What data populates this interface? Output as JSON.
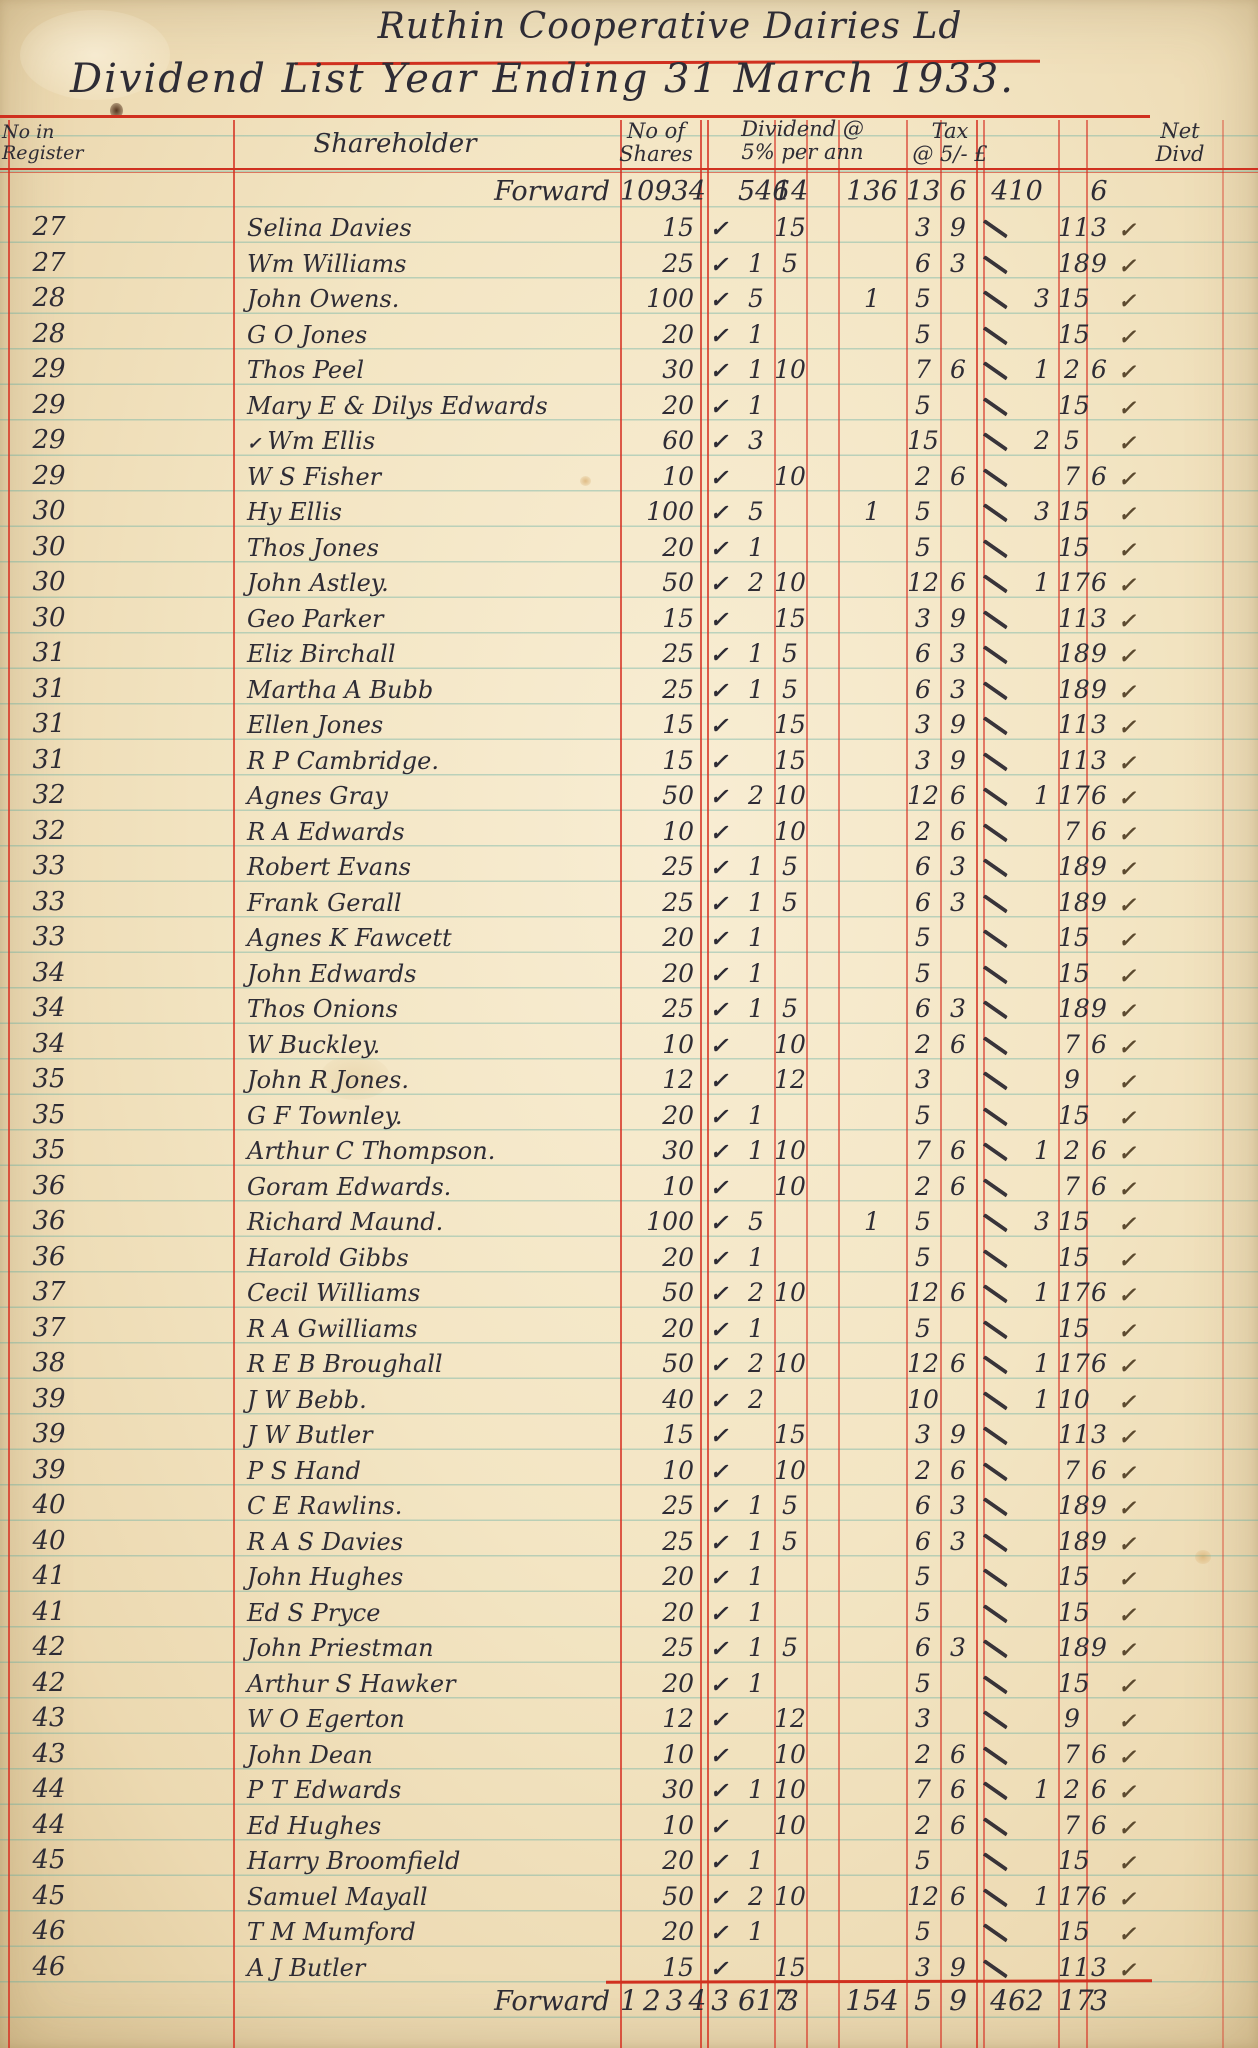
{
  "title": {
    "line1": "Ruthin Cooperative Dairies Ld",
    "line2": "Dividend List Year Ending 31 March 1933."
  },
  "columns": {
    "register": "No in\nRegister",
    "shareholder": "Shareholder",
    "shares": "No of\nShares",
    "dividend": "Dividend @\n5% per ann",
    "tax": "Tax\n@ 5/- £",
    "net": "Net\nDivd"
  },
  "marks": {
    "check": "✓",
    "tick": "✓",
    "pre_tick": "✓"
  },
  "colors": {
    "rule_red": "#d63426",
    "rule_teal": "#5aaaa0",
    "ink": "#2e2c35",
    "paper": "#f3e5c3"
  },
  "forward": {
    "label": "Forward",
    "shares": "10934",
    "div": [
      "546",
      "14",
      ""
    ],
    "tax": [
      "136",
      "13",
      "6"
    ],
    "net": [
      "410",
      "",
      "6"
    ]
  },
  "rows": [
    {
      "r": "27",
      "n": "Selina Davies",
      "s": "15",
      "d": [
        "",
        "15",
        ""
      ],
      "t": [
        "",
        "3",
        "9"
      ],
      "x": [
        "",
        "11",
        "3"
      ]
    },
    {
      "r": "27",
      "n": "Wm Williams",
      "s": "25",
      "d": [
        "1",
        "5",
        ""
      ],
      "t": [
        "",
        "6",
        "3"
      ],
      "x": [
        "",
        "18",
        "9"
      ]
    },
    {
      "r": "28",
      "n": "John Owens.",
      "s": "100",
      "d": [
        "5",
        "",
        ""
      ],
      "t": [
        "1",
        "5",
        ""
      ],
      "x": [
        "3",
        "15",
        ""
      ]
    },
    {
      "r": "28",
      "n": "G O Jones",
      "s": "20",
      "d": [
        "1",
        "",
        ""
      ],
      "t": [
        "",
        "5",
        ""
      ],
      "x": [
        "",
        "15",
        ""
      ]
    },
    {
      "r": "29",
      "n": "Thos Peel",
      "s": "30",
      "d": [
        "1",
        "10",
        ""
      ],
      "t": [
        "",
        "7",
        "6"
      ],
      "x": [
        "1",
        "2",
        "6"
      ]
    },
    {
      "r": "29",
      "n": "Mary E & Dilys Edwards",
      "s": "20",
      "d": [
        "1",
        "",
        ""
      ],
      "t": [
        "",
        "5",
        ""
      ],
      "x": [
        "",
        "15",
        ""
      ]
    },
    {
      "r": "29",
      "n": "Wm Ellis",
      "s": "60",
      "d": [
        "3",
        "",
        ""
      ],
      "t": [
        "",
        "15",
        ""
      ],
      "x": [
        "2",
        "5",
        ""
      ],
      "pre": true
    },
    {
      "r": "29",
      "n": "W S Fisher",
      "s": "10",
      "d": [
        "",
        "10",
        ""
      ],
      "t": [
        "",
        "2",
        "6"
      ],
      "x": [
        "",
        "7",
        "6"
      ]
    },
    {
      "r": "30",
      "n": "Hy Ellis",
      "s": "100",
      "d": [
        "5",
        "",
        ""
      ],
      "t": [
        "1",
        "5",
        ""
      ],
      "x": [
        "3",
        "15",
        ""
      ]
    },
    {
      "r": "30",
      "n": "Thos Jones",
      "s": "20",
      "d": [
        "1",
        "",
        ""
      ],
      "t": [
        "",
        "5",
        ""
      ],
      "x": [
        "",
        "15",
        ""
      ]
    },
    {
      "r": "30",
      "n": "John Astley.",
      "s": "50",
      "d": [
        "2",
        "10",
        ""
      ],
      "t": [
        "",
        "12",
        "6"
      ],
      "x": [
        "1",
        "17",
        "6"
      ]
    },
    {
      "r": "30",
      "n": "Geo Parker",
      "s": "15",
      "d": [
        "",
        "15",
        ""
      ],
      "t": [
        "",
        "3",
        "9"
      ],
      "x": [
        "",
        "11",
        "3"
      ]
    },
    {
      "r": "31",
      "n": "Eliz Birchall",
      "s": "25",
      "d": [
        "1",
        "5",
        ""
      ],
      "t": [
        "",
        "6",
        "3"
      ],
      "x": [
        "",
        "18",
        "9"
      ]
    },
    {
      "r": "31",
      "n": "Martha A Bubb",
      "s": "25",
      "d": [
        "1",
        "5",
        ""
      ],
      "t": [
        "",
        "6",
        "3"
      ],
      "x": [
        "",
        "18",
        "9"
      ]
    },
    {
      "r": "31",
      "n": "Ellen Jones",
      "s": "15",
      "d": [
        "",
        "15",
        ""
      ],
      "t": [
        "",
        "3",
        "9"
      ],
      "x": [
        "",
        "11",
        "3"
      ]
    },
    {
      "r": "31",
      "n": "R P Cambridge.",
      "s": "15",
      "d": [
        "",
        "15",
        ""
      ],
      "t": [
        "",
        "3",
        "9"
      ],
      "x": [
        "",
        "11",
        "3"
      ]
    },
    {
      "r": "32",
      "n": "Agnes Gray",
      "s": "50",
      "d": [
        "2",
        "10",
        ""
      ],
      "t": [
        "",
        "12",
        "6"
      ],
      "x": [
        "1",
        "17",
        "6"
      ]
    },
    {
      "r": "32",
      "n": "R A Edwards",
      "s": "10",
      "d": [
        "",
        "10",
        ""
      ],
      "t": [
        "",
        "2",
        "6"
      ],
      "x": [
        "",
        "7",
        "6"
      ]
    },
    {
      "r": "33",
      "n": "Robert Evans",
      "s": "25",
      "d": [
        "1",
        "5",
        ""
      ],
      "t": [
        "",
        "6",
        "3"
      ],
      "x": [
        "",
        "18",
        "9"
      ]
    },
    {
      "r": "33",
      "n": "Frank Gerall",
      "s": "25",
      "d": [
        "1",
        "5",
        ""
      ],
      "t": [
        "",
        "6",
        "3"
      ],
      "x": [
        "",
        "18",
        "9"
      ]
    },
    {
      "r": "33",
      "n": "Agnes K Fawcett",
      "s": "20",
      "d": [
        "1",
        "",
        ""
      ],
      "t": [
        "",
        "5",
        ""
      ],
      "x": [
        "",
        "15",
        ""
      ]
    },
    {
      "r": "34",
      "n": "John Edwards",
      "s": "20",
      "d": [
        "1",
        "",
        ""
      ],
      "t": [
        "",
        "5",
        ""
      ],
      "x": [
        "",
        "15",
        ""
      ]
    },
    {
      "r": "34",
      "n": "Thos Onions",
      "s": "25",
      "d": [
        "1",
        "5",
        ""
      ],
      "t": [
        "",
        "6",
        "3"
      ],
      "x": [
        "",
        "18",
        "9"
      ]
    },
    {
      "r": "34",
      "n": "W Buckley.",
      "s": "10",
      "d": [
        "",
        "10",
        ""
      ],
      "t": [
        "",
        "2",
        "6"
      ],
      "x": [
        "",
        "7",
        "6"
      ]
    },
    {
      "r": "35",
      "n": "John R Jones.",
      "s": "12",
      "d": [
        "",
        "12",
        ""
      ],
      "t": [
        "",
        "3",
        ""
      ],
      "x": [
        "",
        "9",
        ""
      ]
    },
    {
      "r": "35",
      "n": "G F Townley.",
      "s": "20",
      "d": [
        "1",
        "",
        ""
      ],
      "t": [
        "",
        "5",
        ""
      ],
      "x": [
        "",
        "15",
        ""
      ]
    },
    {
      "r": "35",
      "n": "Arthur C Thompson.",
      "s": "30",
      "d": [
        "1",
        "10",
        ""
      ],
      "t": [
        "",
        "7",
        "6"
      ],
      "x": [
        "1",
        "2",
        "6"
      ]
    },
    {
      "r": "36",
      "n": "Goram Edwards.",
      "s": "10",
      "d": [
        "",
        "10",
        ""
      ],
      "t": [
        "",
        "2",
        "6"
      ],
      "x": [
        "",
        "7",
        "6"
      ]
    },
    {
      "r": "36",
      "n": "Richard Maund.",
      "s": "100",
      "d": [
        "5",
        "",
        ""
      ],
      "t": [
        "1",
        "5",
        ""
      ],
      "x": [
        "3",
        "15",
        ""
      ]
    },
    {
      "r": "36",
      "n": "Harold Gibbs",
      "s": "20",
      "d": [
        "1",
        "",
        ""
      ],
      "t": [
        "",
        "5",
        ""
      ],
      "x": [
        "",
        "15",
        ""
      ]
    },
    {
      "r": "37",
      "n": "Cecil Williams",
      "s": "50",
      "d": [
        "2",
        "10",
        ""
      ],
      "t": [
        "",
        "12",
        "6"
      ],
      "x": [
        "1",
        "17",
        "6"
      ]
    },
    {
      "r": "37",
      "n": "R A Gwilliams",
      "s": "20",
      "d": [
        "1",
        "",
        ""
      ],
      "t": [
        "",
        "5",
        ""
      ],
      "x": [
        "",
        "15",
        ""
      ]
    },
    {
      "r": "38",
      "n": "R E B Broughall",
      "s": "50",
      "d": [
        "2",
        "10",
        ""
      ],
      "t": [
        "",
        "12",
        "6"
      ],
      "x": [
        "1",
        "17",
        "6"
      ]
    },
    {
      "r": "39",
      "n": "J W Bebb.",
      "s": "40",
      "d": [
        "2",
        "",
        ""
      ],
      "t": [
        "",
        "10",
        ""
      ],
      "x": [
        "1",
        "10",
        ""
      ]
    },
    {
      "r": "39",
      "n": "J W Butler",
      "s": "15",
      "d": [
        "",
        "15",
        ""
      ],
      "t": [
        "",
        "3",
        "9"
      ],
      "x": [
        "",
        "11",
        "3"
      ]
    },
    {
      "r": "39",
      "n": "P S Hand",
      "s": "10",
      "d": [
        "",
        "10",
        ""
      ],
      "t": [
        "",
        "2",
        "6"
      ],
      "x": [
        "",
        "7",
        "6"
      ]
    },
    {
      "r": "40",
      "n": "C E Rawlins.",
      "s": "25",
      "d": [
        "1",
        "5",
        ""
      ],
      "t": [
        "",
        "6",
        "3"
      ],
      "x": [
        "",
        "18",
        "9"
      ]
    },
    {
      "r": "40",
      "n": "R A S Davies",
      "s": "25",
      "d": [
        "1",
        "5",
        ""
      ],
      "t": [
        "",
        "6",
        "3"
      ],
      "x": [
        "",
        "18",
        "9"
      ]
    },
    {
      "r": "41",
      "n": "John Hughes",
      "s": "20",
      "d": [
        "1",
        "",
        ""
      ],
      "t": [
        "",
        "5",
        ""
      ],
      "x": [
        "",
        "15",
        ""
      ]
    },
    {
      "r": "41",
      "n": "Ed S Pryce",
      "s": "20",
      "d": [
        "1",
        "",
        ""
      ],
      "t": [
        "",
        "5",
        ""
      ],
      "x": [
        "",
        "15",
        ""
      ]
    },
    {
      "r": "42",
      "n": "John Priestman",
      "s": "25",
      "d": [
        "1",
        "5",
        ""
      ],
      "t": [
        "",
        "6",
        "3"
      ],
      "x": [
        "",
        "18",
        "9"
      ]
    },
    {
      "r": "42",
      "n": "Arthur S Hawker",
      "s": "20",
      "d": [
        "1",
        "",
        ""
      ],
      "t": [
        "",
        "5",
        ""
      ],
      "x": [
        "",
        "15",
        ""
      ]
    },
    {
      "r": "43",
      "n": "W O Egerton",
      "s": "12",
      "d": [
        "",
        "12",
        ""
      ],
      "t": [
        "",
        "3",
        ""
      ],
      "x": [
        "",
        "9",
        ""
      ]
    },
    {
      "r": "43",
      "n": "John Dean",
      "s": "10",
      "d": [
        "",
        "10",
        ""
      ],
      "t": [
        "",
        "2",
        "6"
      ],
      "x": [
        "",
        "7",
        "6"
      ]
    },
    {
      "r": "44",
      "n": "P T Edwards",
      "s": "30",
      "d": [
        "1",
        "10",
        ""
      ],
      "t": [
        "",
        "7",
        "6"
      ],
      "x": [
        "1",
        "2",
        "6"
      ]
    },
    {
      "r": "44",
      "n": "Ed Hughes",
      "s": "10",
      "d": [
        "",
        "10",
        ""
      ],
      "t": [
        "",
        "2",
        "6"
      ],
      "x": [
        "",
        "7",
        "6"
      ]
    },
    {
      "r": "45",
      "n": "Harry Broomfield",
      "s": "20",
      "d": [
        "1",
        "",
        ""
      ],
      "t": [
        "",
        "5",
        ""
      ],
      "x": [
        "",
        "15",
        ""
      ]
    },
    {
      "r": "45",
      "n": "Samuel Mayall",
      "s": "50",
      "d": [
        "2",
        "10",
        ""
      ],
      "t": [
        "",
        "12",
        "6"
      ],
      "x": [
        "1",
        "17",
        "6"
      ]
    },
    {
      "r": "46",
      "n": "T M Mumford",
      "s": "20",
      "d": [
        "1",
        "",
        ""
      ],
      "t": [
        "",
        "5",
        ""
      ],
      "x": [
        "",
        "15",
        ""
      ]
    },
    {
      "r": "46",
      "n": "A J Butler",
      "s": "15",
      "d": [
        "",
        "15",
        ""
      ],
      "t": [
        "",
        "3",
        "9"
      ],
      "x": [
        "",
        "11",
        "3"
      ]
    }
  ],
  "totals": {
    "label": "Forward",
    "shares": "12343",
    "div": [
      "617",
      "3",
      ""
    ],
    "tax": [
      "154",
      "5",
      "9"
    ],
    "net": [
      "462",
      "17",
      "3"
    ]
  }
}
